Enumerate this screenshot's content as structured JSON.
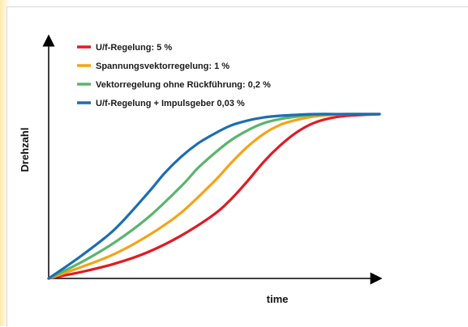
{
  "chart_data": {
    "type": "line",
    "title": "",
    "xlabel": "time",
    "ylabel": "Drehzahl",
    "xlim": [
      0,
      10
    ],
    "ylim": [
      0,
      1
    ],
    "grid": false,
    "legend_placement": "top-left",
    "series": [
      {
        "name": "U/f-Regelung: 5 %",
        "color": "#e01b24",
        "x": [
          0,
          1,
          2,
          3,
          4,
          5,
          5.5,
          6,
          6.5,
          7,
          7.5,
          8,
          8.5,
          9,
          10
        ],
        "y": [
          0,
          0.04,
          0.09,
          0.16,
          0.26,
          0.39,
          0.48,
          0.59,
          0.71,
          0.81,
          0.89,
          0.945,
          0.975,
          0.99,
          1.0
        ]
      },
      {
        "name": "Spannungsvektorregelung: 1 %",
        "color": "#f5a315",
        "x": [
          0,
          1,
          2,
          3,
          4,
          5,
          5.5,
          6,
          6.5,
          7,
          7.5,
          8,
          8.5,
          9,
          10
        ],
        "y": [
          0,
          0.07,
          0.15,
          0.26,
          0.4,
          0.59,
          0.7,
          0.8,
          0.88,
          0.935,
          0.965,
          0.985,
          0.995,
          1.0,
          1.0
        ]
      },
      {
        "name": "Vektorregelung ohne Rückführung: 0,2 %",
        "color": "#5ab56e",
        "x": [
          0,
          1,
          2,
          3,
          4,
          4.5,
          5,
          5.5,
          6,
          6.5,
          7,
          7.5,
          8,
          9,
          10
        ],
        "y": [
          0,
          0.1,
          0.22,
          0.37,
          0.56,
          0.67,
          0.76,
          0.84,
          0.9,
          0.945,
          0.97,
          0.985,
          0.995,
          1.0,
          1.0
        ]
      },
      {
        "name": "U/f-Regelung + Impulsgeber 0,03 %",
        "color": "#1c6db3",
        "x": [
          0,
          1,
          2,
          3,
          3.5,
          4,
          4.5,
          5,
          5.5,
          6,
          6.5,
          7,
          8,
          9,
          10
        ],
        "y": [
          0,
          0.14,
          0.3,
          0.52,
          0.64,
          0.74,
          0.82,
          0.88,
          0.93,
          0.96,
          0.98,
          0.99,
          1.0,
          1.0,
          1.0
        ]
      }
    ]
  }
}
